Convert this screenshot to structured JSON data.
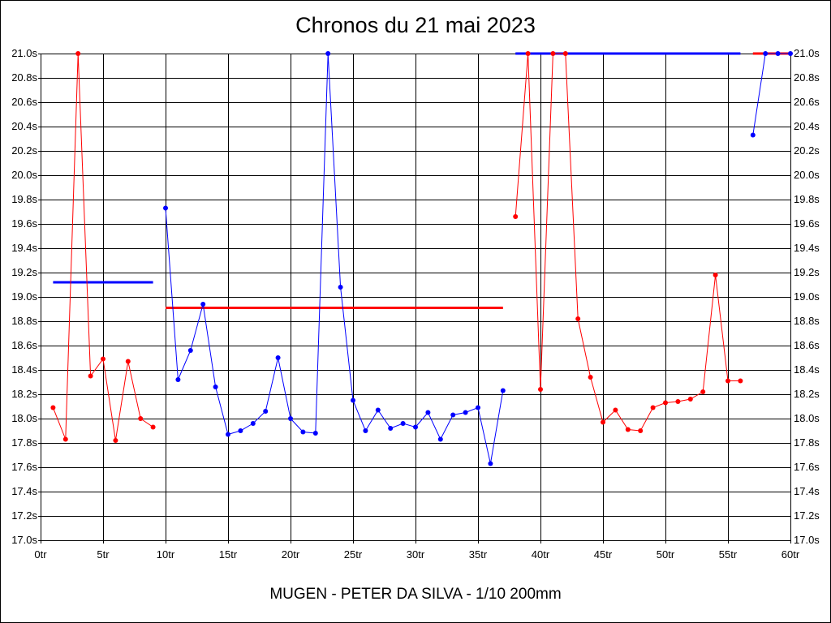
{
  "title": "Chronos du 21 mai 2023",
  "footer": "MUGEN - PETER DA SILVA - 1/10 200mm",
  "chart_data": {
    "type": "line",
    "title": "Chronos du 21 mai 2023",
    "xlabel": "",
    "ylabel": "",
    "xlim": [
      0,
      60
    ],
    "ylim": [
      17.0,
      21.0
    ],
    "x_ticks": [
      0,
      5,
      10,
      15,
      20,
      25,
      30,
      35,
      40,
      45,
      50,
      55,
      60
    ],
    "x_tick_labels": [
      "0tr",
      "5tr",
      "10tr",
      "15tr",
      "20tr",
      "25tr",
      "30tr",
      "35tr",
      "40tr",
      "45tr",
      "50tr",
      "55tr",
      "60tr"
    ],
    "y_ticks": [
      17.0,
      17.2,
      17.4,
      17.6,
      17.8,
      18.0,
      18.2,
      18.4,
      18.6,
      18.8,
      19.0,
      19.2,
      19.4,
      19.6,
      19.8,
      20.0,
      20.2,
      20.4,
      20.6,
      20.8,
      21.0
    ],
    "y_tick_labels": [
      "17.0s",
      "17.2s",
      "17.4s",
      "17.6s",
      "17.8s",
      "18.0s",
      "18.2s",
      "18.4s",
      "18.6s",
      "18.8s",
      "19.0s",
      "19.2s",
      "19.4s",
      "19.6s",
      "19.8s",
      "20.0s",
      "20.2s",
      "20.4s",
      "20.6s",
      "20.8s",
      "21.0s"
    ],
    "grid": true,
    "y_axis_both_sides": true,
    "series": [
      {
        "color": "#ff0000",
        "x": [
          1,
          2,
          3,
          4,
          5,
          6,
          7,
          8,
          9
        ],
        "y": [
          18.09,
          17.83,
          21.0,
          18.35,
          18.49,
          17.82,
          18.47,
          18.0,
          17.93
        ],
        "average": 19.12,
        "average_color": "#0000ff"
      },
      {
        "color": "#0000ff",
        "x": [
          10,
          11,
          12,
          13,
          14,
          15,
          16,
          17,
          18,
          19,
          20,
          21,
          22,
          23,
          24,
          25,
          26,
          27,
          28,
          29,
          30,
          31,
          32,
          33,
          34,
          35,
          36,
          37
        ],
        "y": [
          19.73,
          18.32,
          18.56,
          18.94,
          18.26,
          17.87,
          17.9,
          17.96,
          18.06,
          18.5,
          18.0,
          17.89,
          17.88,
          21.0,
          19.08,
          18.15,
          17.9,
          18.07,
          17.92,
          17.96,
          17.93,
          18.05,
          17.83,
          18.03,
          18.05,
          18.09,
          17.63,
          18.23
        ],
        "average": 18.91,
        "average_color": "#ff0000"
      },
      {
        "color": "#ff0000",
        "x": [
          38,
          39,
          40,
          41,
          42,
          43,
          44,
          45,
          46,
          47,
          48,
          49,
          50,
          51,
          52,
          53,
          54,
          55,
          56
        ],
        "y": [
          19.66,
          21.0,
          18.24,
          21.0,
          21.0,
          18.82,
          18.34,
          17.97,
          18.07,
          17.91,
          17.9,
          18.09,
          18.13,
          18.14,
          18.16,
          18.22,
          19.18,
          18.31,
          18.31
        ],
        "average": 21.0,
        "average_color": "#0000ff"
      },
      {
        "color": "#0000ff",
        "x": [
          57,
          58,
          59,
          60
        ],
        "y": [
          20.33,
          21.0,
          21.0,
          21.0
        ],
        "average": 21.0,
        "average_color": "#ff0000"
      }
    ]
  }
}
